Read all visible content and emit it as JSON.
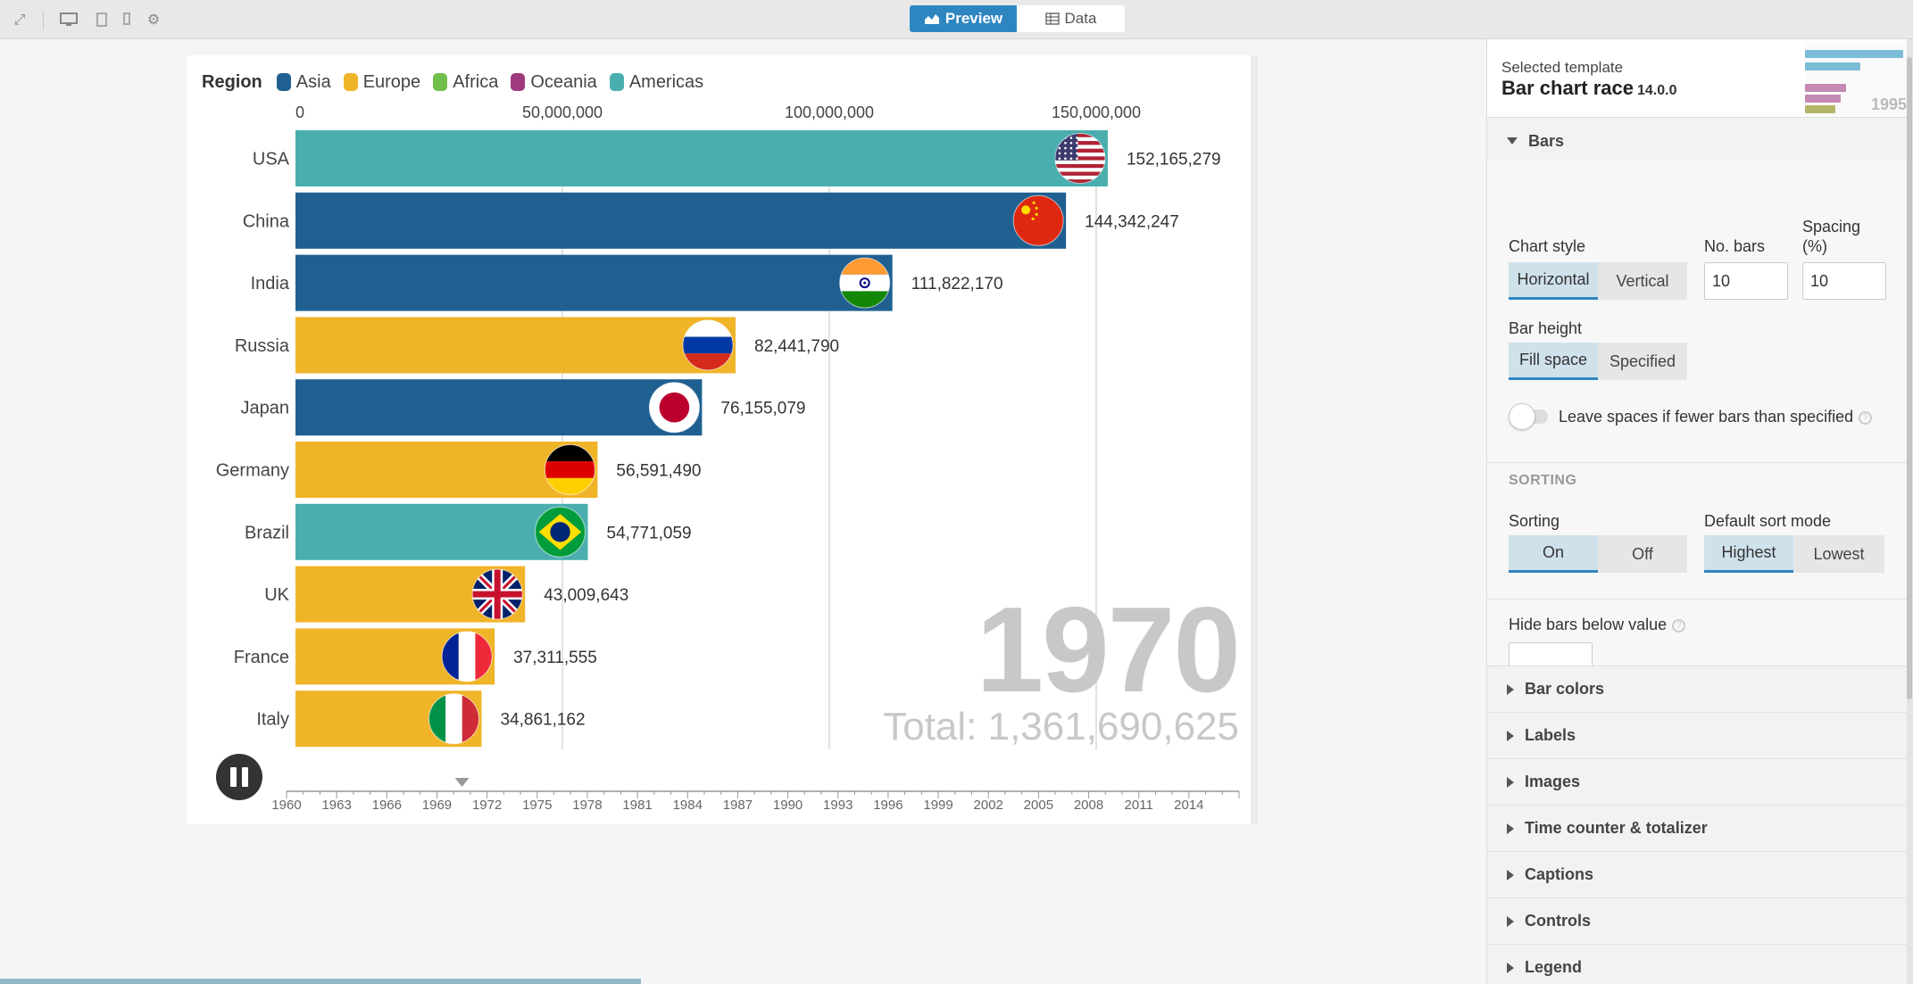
{
  "toolbar": {
    "mode_preview": "Preview",
    "mode_data": "Data"
  },
  "legend": {
    "title": "Region",
    "items": [
      {
        "label": "Asia",
        "color": "#1f6091"
      },
      {
        "label": "Europe",
        "color": "#f0b429"
      },
      {
        "label": "Africa",
        "color": "#6fbf4a"
      },
      {
        "label": "Oceania",
        "color": "#a03a7e"
      },
      {
        "label": "Americas",
        "color": "#4aaeae"
      }
    ]
  },
  "chart_data": {
    "type": "bar",
    "orientation": "horizontal",
    "title": "",
    "xlabel": "",
    "ylabel": "",
    "xlim": [
      0,
      160000000
    ],
    "x_ticks": [
      0,
      50000000,
      100000000,
      150000000
    ],
    "x_tick_labels": [
      "0",
      "50,000,000",
      "100,000,000",
      "150,000,000"
    ],
    "categories": [
      "USA",
      "China",
      "India",
      "Russia",
      "Japan",
      "Germany",
      "Brazil",
      "UK",
      "France",
      "Italy"
    ],
    "values": [
      152165279,
      144342247,
      111822170,
      82441790,
      76155079,
      56591490,
      54771059,
      43009643,
      37311555,
      34861162
    ],
    "value_labels": [
      "152,165,279",
      "144,342,247",
      "111,822,170",
      "82,441,790",
      "76,155,079",
      "56,591,490",
      "54,771,059",
      "43,009,643",
      "37,311,555",
      "34,861,162"
    ],
    "regions": [
      "Americas",
      "Asia",
      "Asia",
      "Europe",
      "Asia",
      "Europe",
      "Americas",
      "Europe",
      "Europe",
      "Europe"
    ],
    "flags": [
      "flag-usa",
      "flag-china",
      "flag-india",
      "flag-russia",
      "flag-japan",
      "flag-germany",
      "flag-brazil",
      "flag-uk",
      "flag-france",
      "flag-italy"
    ],
    "year": "1970",
    "total_label": "Total: 1,361,690,625"
  },
  "timeline": {
    "ticks": [
      "1960",
      "1963",
      "1966",
      "1969",
      "1972",
      "1975",
      "1978",
      "1981",
      "1984",
      "1987",
      "1990",
      "1993",
      "1996",
      "1999",
      "2002",
      "2005",
      "2008",
      "2011",
      "2014"
    ],
    "range": [
      1960,
      2017
    ],
    "current": 1970.5
  },
  "panel": {
    "selected_label": "Selected template",
    "template_name": "Bar chart race",
    "template_version": "14.0.0",
    "thumb_year": "1995",
    "bars_section": "Bars",
    "chart_style_label": "Chart style",
    "chart_style_options": [
      "Horizontal",
      "Vertical"
    ],
    "no_bars_label": "No. bars",
    "no_bars_value": "10",
    "spacing_label_1": "Spacing",
    "spacing_label_2": "(%)",
    "spacing_value": "10",
    "bar_height_label": "Bar height",
    "bar_height_options": [
      "Fill space",
      "Specified"
    ],
    "leave_spaces_label": "Leave spaces if fewer bars than specified",
    "sorting_heading": "SORTING",
    "sorting_label": "Sorting",
    "sorting_options": [
      "On",
      "Off"
    ],
    "sort_mode_label": "Default sort mode",
    "sort_mode_options": [
      "Highest",
      "Lowest"
    ],
    "hide_bars_label": "Hide bars below value",
    "hide_bars_value": "",
    "collapsed_sections": [
      "Bar colors",
      "Labels",
      "Images",
      "Time counter & totalizer",
      "Captions",
      "Controls",
      "Legend"
    ]
  }
}
